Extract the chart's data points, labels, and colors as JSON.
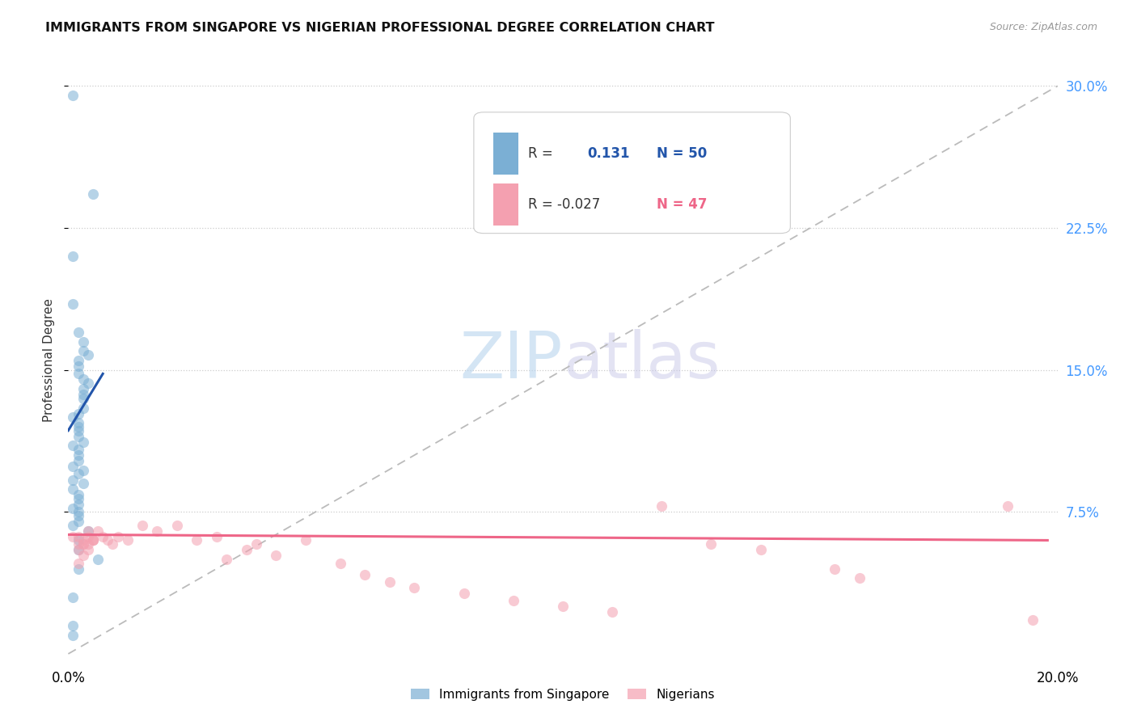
{
  "title": "IMMIGRANTS FROM SINGAPORE VS NIGERIAN PROFESSIONAL DEGREE CORRELATION CHART",
  "source": "Source: ZipAtlas.com",
  "ylabel": "Professional Degree",
  "xlim": [
    0.0,
    0.2
  ],
  "ylim": [
    -0.005,
    0.315
  ],
  "grid_color": "#cccccc",
  "background_color": "#ffffff",
  "watermark_zip": "ZIP",
  "watermark_atlas": "atlas",
  "blue_color": "#7bafd4",
  "pink_color": "#f4a0b0",
  "blue_line_color": "#2255aa",
  "pink_line_color": "#ee6688",
  "dashed_line_color": "#bbbbbb",
  "sg_x": [
    0.001,
    0.005,
    0.001,
    0.001,
    0.002,
    0.003,
    0.003,
    0.004,
    0.002,
    0.002,
    0.002,
    0.003,
    0.004,
    0.003,
    0.003,
    0.003,
    0.003,
    0.002,
    0.001,
    0.002,
    0.002,
    0.002,
    0.002,
    0.003,
    0.001,
    0.002,
    0.002,
    0.002,
    0.001,
    0.003,
    0.002,
    0.001,
    0.003,
    0.001,
    0.002,
    0.002,
    0.002,
    0.001,
    0.002,
    0.002,
    0.002,
    0.001,
    0.004,
    0.002,
    0.002,
    0.006,
    0.002,
    0.001,
    0.001,
    0.001
  ],
  "sg_y": [
    0.295,
    0.243,
    0.21,
    0.185,
    0.17,
    0.165,
    0.16,
    0.158,
    0.155,
    0.152,
    0.148,
    0.145,
    0.143,
    0.14,
    0.137,
    0.135,
    0.13,
    0.127,
    0.125,
    0.122,
    0.12,
    0.118,
    0.115,
    0.112,
    0.11,
    0.108,
    0.105,
    0.102,
    0.099,
    0.097,
    0.095,
    0.092,
    0.09,
    0.087,
    0.084,
    0.082,
    0.079,
    0.077,
    0.075,
    0.073,
    0.07,
    0.068,
    0.065,
    0.06,
    0.055,
    0.05,
    0.045,
    0.03,
    0.015,
    0.01
  ],
  "ng_x": [
    0.001,
    0.002,
    0.003,
    0.004,
    0.002,
    0.003,
    0.004,
    0.005,
    0.002,
    0.003,
    0.004,
    0.005,
    0.002,
    0.003,
    0.004,
    0.005,
    0.006,
    0.007,
    0.008,
    0.009,
    0.01,
    0.012,
    0.015,
    0.018,
    0.022,
    0.026,
    0.03,
    0.036,
    0.032,
    0.038,
    0.042,
    0.048,
    0.055,
    0.06,
    0.065,
    0.07,
    0.08,
    0.09,
    0.1,
    0.11,
    0.12,
    0.13,
    0.14,
    0.155,
    0.16,
    0.19,
    0.195
  ],
  "ng_y": [
    0.062,
    0.058,
    0.06,
    0.055,
    0.048,
    0.052,
    0.058,
    0.06,
    0.062,
    0.058,
    0.065,
    0.06,
    0.055,
    0.058,
    0.062,
    0.06,
    0.065,
    0.062,
    0.06,
    0.058,
    0.062,
    0.06,
    0.068,
    0.065,
    0.068,
    0.06,
    0.062,
    0.055,
    0.05,
    0.058,
    0.052,
    0.06,
    0.048,
    0.042,
    0.038,
    0.035,
    0.032,
    0.028,
    0.025,
    0.022,
    0.078,
    0.058,
    0.055,
    0.045,
    0.04,
    0.078,
    0.018
  ],
  "blue_trend_x": [
    0.0,
    0.007
  ],
  "blue_trend_y": [
    0.118,
    0.148
  ],
  "pink_trend_x": [
    0.0,
    0.198
  ],
  "pink_trend_y": [
    0.063,
    0.06
  ]
}
